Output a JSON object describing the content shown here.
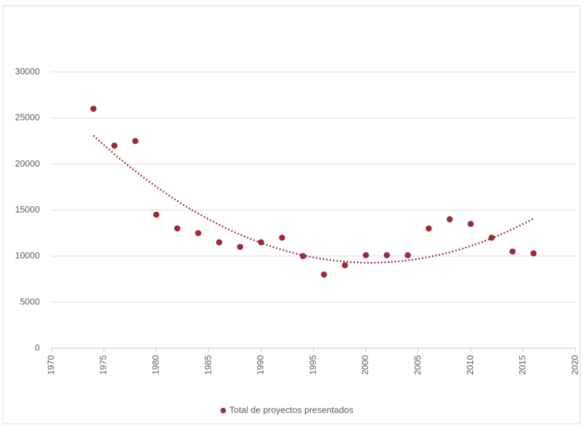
{
  "chart_data": {
    "type": "scatter",
    "x": [
      1974,
      1976,
      1978,
      1980,
      1982,
      1984,
      1986,
      1988,
      1990,
      1992,
      1994,
      1996,
      1998,
      2000,
      2002,
      2004,
      2006,
      2008,
      2010,
      2012,
      2014,
      2016
    ],
    "series": [
      {
        "name": "Total de proyectos presentados",
        "color": "#9e2a38",
        "values": [
          26000,
          22000,
          22500,
          14500,
          13000,
          12500,
          11500,
          11000,
          11500,
          12000,
          10000,
          8000,
          9000,
          10100,
          10100,
          10100,
          13000,
          14000,
          13500,
          12000,
          10500,
          10300
        ]
      }
    ],
    "trendline": "polynomial",
    "xlim": [
      1970,
      2020
    ],
    "xticks": [
      1970,
      1975,
      1980,
      1985,
      1990,
      1995,
      2000,
      2005,
      2010,
      2015,
      2020
    ],
    "ylim": [
      0,
      30000
    ],
    "yticks": [
      0,
      5000,
      10000,
      15000,
      20000,
      25000,
      30000
    ],
    "grid": true,
    "legend": "bottom"
  }
}
